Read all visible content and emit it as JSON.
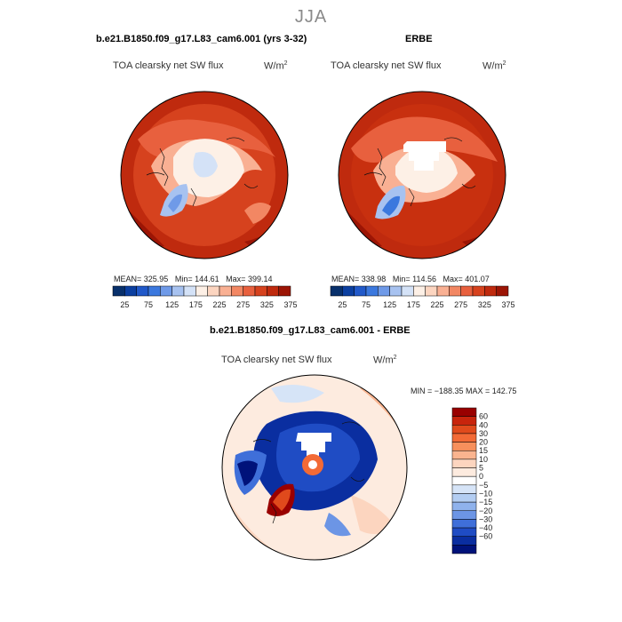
{
  "season": "JJA",
  "panels": [
    {
      "title": "b.e21.B1850.f09_g17.L83_cam6.001 (yrs 3-32)",
      "subtitle": "TOA clearsky net SW flux",
      "units": "W/m",
      "units_exp": "2",
      "mean_label": "MEAN=",
      "mean": "325.95",
      "min_label": "Min=",
      "min": "144.61",
      "max_label": "Max=",
      "max": "399.14"
    },
    {
      "title": "ERBE",
      "subtitle": "TOA clearsky net SW flux",
      "units": "W/m",
      "units_exp": "2",
      "mean_label": "MEAN=",
      "mean": "338.98",
      "min_label": "Min=",
      "min": "114.56",
      "max_label": "Max=",
      "max": "401.07"
    }
  ],
  "top_colorbar": {
    "labels": [
      "25",
      "75",
      "125",
      "175",
      "225",
      "275",
      "325",
      "375"
    ],
    "colors": [
      "#08306b",
      "#0b3fa0",
      "#2159c9",
      "#3b78de",
      "#6f9ae8",
      "#a7c2f0",
      "#d4e2f7",
      "#fdf0e6",
      "#fcd5c0",
      "#f9b093",
      "#f28763",
      "#e8603e",
      "#d6421e",
      "#bf2a0e",
      "#9c1505"
    ]
  },
  "diff_panel": {
    "title": "b.e21.B1850.f09_g17.L83_cam6.001 - ERBE",
    "subtitle": "TOA clearsky net SW flux",
    "units": "W/m",
    "units_exp": "2",
    "minmax_text": "MIN = −188.35  MAX = 142.75"
  },
  "diff_colorbar": {
    "labels": [
      "60",
      "40",
      "30",
      "20",
      "15",
      "10",
      "5",
      "0",
      "−5",
      "−10",
      "−15",
      "−20",
      "−30",
      "−40",
      "−60"
    ],
    "colors": [
      "#990000",
      "#c8240c",
      "#e04a1c",
      "#f26a36",
      "#f7905c",
      "#fab48f",
      "#fcd5bf",
      "#fdebdf",
      "#ffffff",
      "#d6e4f7",
      "#b3cdf2",
      "#8fb2ec",
      "#6c95e5",
      "#3f6fd9",
      "#1f4cc4",
      "#0a2ea0",
      "#00127a"
    ]
  },
  "chart_data": [
    {
      "type": "heatmap",
      "projection": "north-polar stereographic",
      "title": "b.e21.B1850.f09_g17.L83_cam6.001 (yrs 3-32)",
      "field": "TOA clearsky net SW flux",
      "units": "W/m2",
      "mean": 325.95,
      "min": 144.61,
      "max": 399.14,
      "contour_levels": [
        25,
        50,
        75,
        100,
        125,
        150,
        175,
        200,
        225,
        250,
        275,
        300,
        325,
        350,
        375
      ]
    },
    {
      "type": "heatmap",
      "projection": "north-polar stereographic",
      "title": "ERBE",
      "field": "TOA clearsky net SW flux",
      "units": "W/m2",
      "mean": 338.98,
      "min": 114.56,
      "max": 401.07,
      "contour_levels": [
        25,
        50,
        75,
        100,
        125,
        150,
        175,
        200,
        225,
        250,
        275,
        300,
        325,
        350,
        375
      ]
    },
    {
      "type": "heatmap",
      "projection": "north-polar stereographic",
      "title": "b.e21.B1850.f09_g17.L83_cam6.001 - ERBE",
      "field": "TOA clearsky net SW flux",
      "units": "W/m2",
      "min": -188.35,
      "max": 142.75,
      "contour_levels": [
        -60,
        -40,
        -30,
        -20,
        -15,
        -10,
        -5,
        0,
        5,
        10,
        15,
        20,
        30,
        40,
        60
      ]
    }
  ]
}
